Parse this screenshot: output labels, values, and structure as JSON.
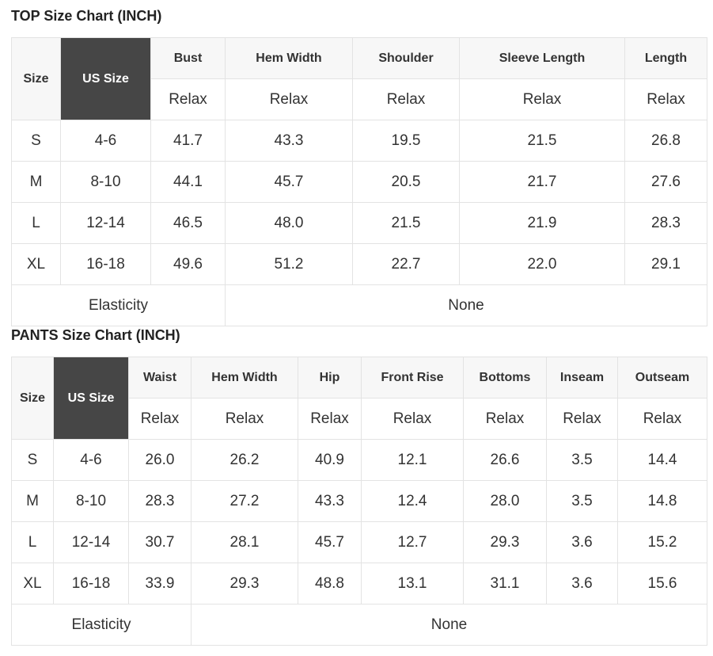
{
  "top": {
    "title": "TOP Size Chart (INCH)",
    "size_label": "Size",
    "us_size_label": "US Size",
    "columns": [
      "Bust",
      "Hem Width",
      "Shoulder",
      "Sleeve Length",
      "Length"
    ],
    "fit": [
      "Relax",
      "Relax",
      "Relax",
      "Relax",
      "Relax"
    ],
    "rows": [
      [
        "S",
        "4-6",
        "41.7",
        "43.3",
        "19.5",
        "21.5",
        "26.8"
      ],
      [
        "M",
        "8-10",
        "44.1",
        "45.7",
        "20.5",
        "21.7",
        "27.6"
      ],
      [
        "L",
        "12-14",
        "46.5",
        "48.0",
        "21.5",
        "21.9",
        "28.3"
      ],
      [
        "XL",
        "16-18",
        "49.6",
        "51.2",
        "22.7",
        "22.0",
        "29.1"
      ]
    ],
    "elasticity_label": "Elasticity",
    "elasticity_value": "None"
  },
  "pants": {
    "title": "PANTS Size Chart (INCH)",
    "size_label": "Size",
    "us_size_label": "US Size",
    "columns": [
      "Waist",
      "Hem Width",
      "Hip",
      "Front Rise",
      "Bottoms",
      "Inseam",
      "Outseam"
    ],
    "fit": [
      "Relax",
      "Relax",
      "Relax",
      "Relax",
      "Relax",
      "Relax",
      "Relax"
    ],
    "rows": [
      [
        "S",
        "4-6",
        "26.0",
        "26.2",
        "40.9",
        "12.1",
        "26.6",
        "3.5",
        "14.4"
      ],
      [
        "M",
        "8-10",
        "28.3",
        "27.2",
        "43.3",
        "12.4",
        "28.0",
        "3.5",
        "14.8"
      ],
      [
        "L",
        "12-14",
        "30.7",
        "28.1",
        "45.7",
        "12.7",
        "29.3",
        "3.6",
        "15.2"
      ],
      [
        "XL",
        "16-18",
        "33.9",
        "29.3",
        "48.8",
        "13.1",
        "31.1",
        "3.6",
        "15.6"
      ]
    ],
    "elasticity_label": "Elasticity",
    "elasticity_value": "None"
  }
}
